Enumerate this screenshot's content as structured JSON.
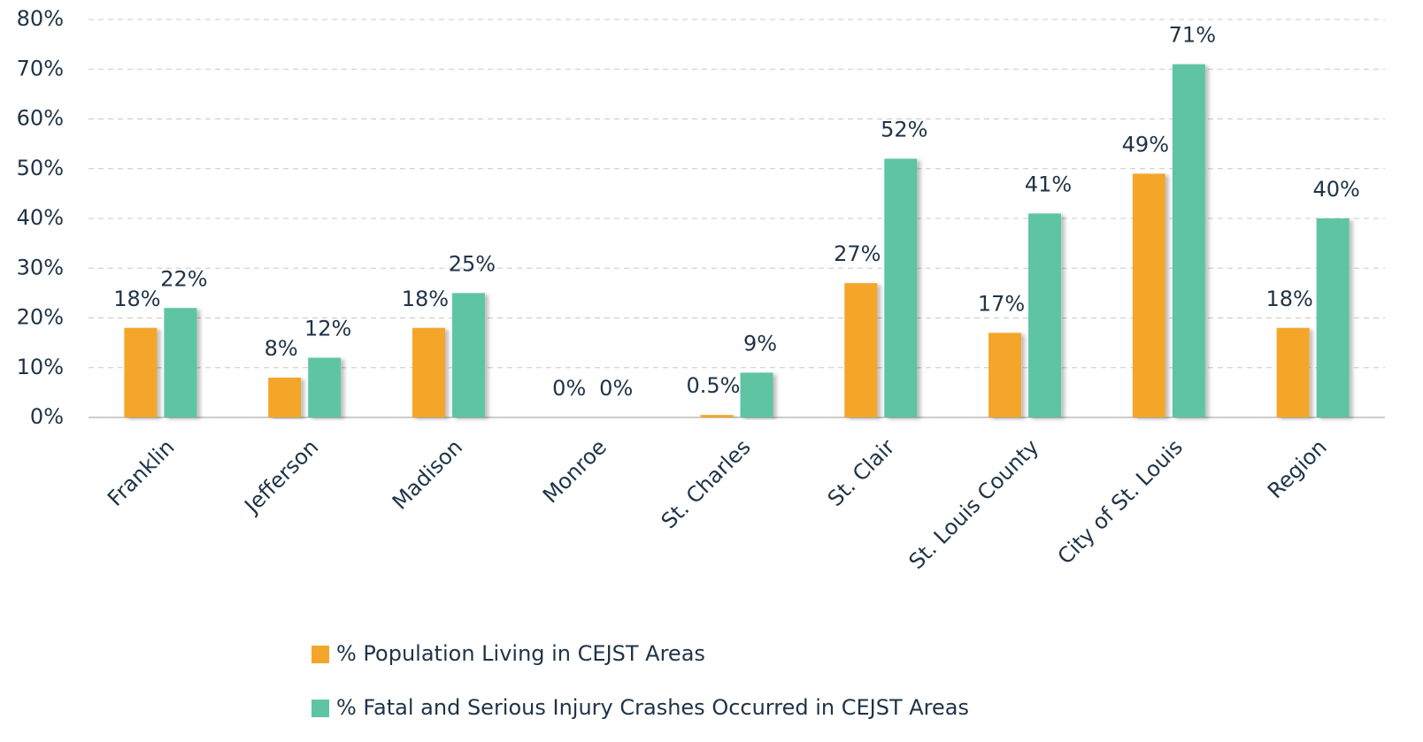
{
  "chart_data": {
    "type": "bar",
    "categories": [
      "Franklin",
      "Jefferson",
      "Madison",
      "Monroe",
      "St. Charles",
      "St. Clair",
      "St. Louis County",
      "City of St. Louis",
      "Region"
    ],
    "series": [
      {
        "name": "% Population Living in CEJST Areas",
        "color": "#f4a62a",
        "values": [
          18,
          8,
          18,
          0,
          0.5,
          27,
          17,
          49,
          18
        ],
        "value_labels": [
          "18%",
          "8%",
          "18%",
          "0%",
          "0.5%",
          "27%",
          "17%",
          "49%",
          "18%"
        ]
      },
      {
        "name": "% Fatal and Serious Injury Crashes Occurred in CEJST Areas",
        "color": "#5fc4a3",
        "values": [
          22,
          12,
          25,
          0,
          9,
          52,
          41,
          71,
          40
        ],
        "value_labels": [
          "22%",
          "12%",
          "25%",
          "0%",
          "9%",
          "52%",
          "41%",
          "71%",
          "40%"
        ]
      }
    ],
    "ylim": [
      0,
      80
    ],
    "yticks": [
      {
        "value": 0,
        "label": "0%"
      },
      {
        "value": 10,
        "label": "10%"
      },
      {
        "value": 20,
        "label": "20%"
      },
      {
        "value": 30,
        "label": "30%"
      },
      {
        "value": 40,
        "label": "40%"
      },
      {
        "value": 50,
        "label": "50%"
      },
      {
        "value": 60,
        "label": "60%"
      },
      {
        "value": 70,
        "label": "70%"
      },
      {
        "value": 80,
        "label": "80%"
      }
    ],
    "grid": true,
    "legend": "bottom"
  }
}
